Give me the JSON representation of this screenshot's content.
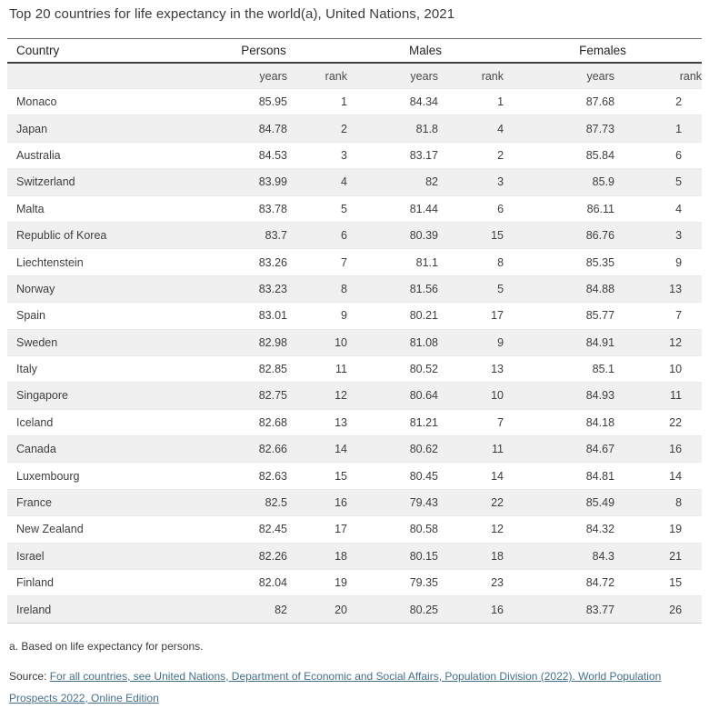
{
  "title": "Top 20 countries for life expectancy in the world(a), United Nations, 2021",
  "table": {
    "columns": {
      "country": "Country",
      "persons": "Persons",
      "males": "Males",
      "females": "Females"
    },
    "sub_headers": {
      "years": "years",
      "rank": "rank"
    }
  },
  "footnote": "a. Based on life expectancy for persons.",
  "source": {
    "label": "Source:",
    "link_text": "For all countries, see United Nations, Department of Economic and Social Affairs, Population Division (2022). World Population Prospects 2022, Online Edition"
  },
  "colors": {
    "stripe": "#f0f0f0",
    "subheader_bg": "#f0f0f0",
    "header_rule": "#3f3f3f",
    "top_rule": "#6b6b6b",
    "row_divider": "#eaeaea",
    "text": "#3d3d3d",
    "link": "#44708c"
  },
  "chart_data": {
    "type": "table",
    "title": "Top 20 countries for life expectancy in the world(a), United Nations, 2021",
    "columns": [
      "Country",
      "Persons years",
      "Persons rank",
      "Males years",
      "Males rank",
      "Females years",
      "Females rank"
    ],
    "rows": [
      {
        "country": "Monaco",
        "persons_years": "85.95",
        "persons_rank": "1",
        "males_years": "84.34",
        "males_rank": "1",
        "females_years": "87.68",
        "females_rank": "2"
      },
      {
        "country": "Japan",
        "persons_years": "84.78",
        "persons_rank": "2",
        "males_years": "81.8",
        "males_rank": "4",
        "females_years": "87.73",
        "females_rank": "1"
      },
      {
        "country": "Australia",
        "persons_years": "84.53",
        "persons_rank": "3",
        "males_years": "83.17",
        "males_rank": "2",
        "females_years": "85.84",
        "females_rank": "6"
      },
      {
        "country": "Switzerland",
        "persons_years": "83.99",
        "persons_rank": "4",
        "males_years": "82",
        "males_rank": "3",
        "females_years": "85.9",
        "females_rank": "5"
      },
      {
        "country": "Malta",
        "persons_years": "83.78",
        "persons_rank": "5",
        "males_years": "81.44",
        "males_rank": "6",
        "females_years": "86.11",
        "females_rank": "4"
      },
      {
        "country": "Republic of Korea",
        "persons_years": "83.7",
        "persons_rank": "6",
        "males_years": "80.39",
        "males_rank": "15",
        "females_years": "86.76",
        "females_rank": "3"
      },
      {
        "country": "Liechtenstein",
        "persons_years": "83.26",
        "persons_rank": "7",
        "males_years": "81.1",
        "males_rank": "8",
        "females_years": "85.35",
        "females_rank": "9"
      },
      {
        "country": "Norway",
        "persons_years": "83.23",
        "persons_rank": "8",
        "males_years": "81.56",
        "males_rank": "5",
        "females_years": "84.88",
        "females_rank": "13"
      },
      {
        "country": "Spain",
        "persons_years": "83.01",
        "persons_rank": "9",
        "males_years": "80.21",
        "males_rank": "17",
        "females_years": "85.77",
        "females_rank": "7"
      },
      {
        "country": "Sweden",
        "persons_years": "82.98",
        "persons_rank": "10",
        "males_years": "81.08",
        "males_rank": "9",
        "females_years": "84.91",
        "females_rank": "12"
      },
      {
        "country": "Italy",
        "persons_years": "82.85",
        "persons_rank": "11",
        "males_years": "80.52",
        "males_rank": "13",
        "females_years": "85.1",
        "females_rank": "10"
      },
      {
        "country": "Singapore",
        "persons_years": "82.75",
        "persons_rank": "12",
        "males_years": "80.64",
        "males_rank": "10",
        "females_years": "84.93",
        "females_rank": "11"
      },
      {
        "country": "Iceland",
        "persons_years": "82.68",
        "persons_rank": "13",
        "males_years": "81.21",
        "males_rank": "7",
        "females_years": "84.18",
        "females_rank": "22"
      },
      {
        "country": "Canada",
        "persons_years": "82.66",
        "persons_rank": "14",
        "males_years": "80.62",
        "males_rank": "11",
        "females_years": "84.67",
        "females_rank": "16"
      },
      {
        "country": "Luxembourg",
        "persons_years": "82.63",
        "persons_rank": "15",
        "males_years": "80.45",
        "males_rank": "14",
        "females_years": "84.81",
        "females_rank": "14"
      },
      {
        "country": "France",
        "persons_years": "82.5",
        "persons_rank": "16",
        "males_years": "79.43",
        "males_rank": "22",
        "females_years": "85.49",
        "females_rank": "8"
      },
      {
        "country": "New Zealand",
        "persons_years": "82.45",
        "persons_rank": "17",
        "males_years": "80.58",
        "males_rank": "12",
        "females_years": "84.32",
        "females_rank": "19"
      },
      {
        "country": "Israel",
        "persons_years": "82.26",
        "persons_rank": "18",
        "males_years": "80.15",
        "males_rank": "18",
        "females_years": "84.3",
        "females_rank": "21"
      },
      {
        "country": "Finland",
        "persons_years": "82.04",
        "persons_rank": "19",
        "males_years": "79.35",
        "males_rank": "23",
        "females_years": "84.72",
        "females_rank": "15"
      },
      {
        "country": "Ireland",
        "persons_years": "82",
        "persons_rank": "20",
        "males_years": "80.25",
        "males_rank": "16",
        "females_years": "83.77",
        "females_rank": "26"
      }
    ]
  }
}
